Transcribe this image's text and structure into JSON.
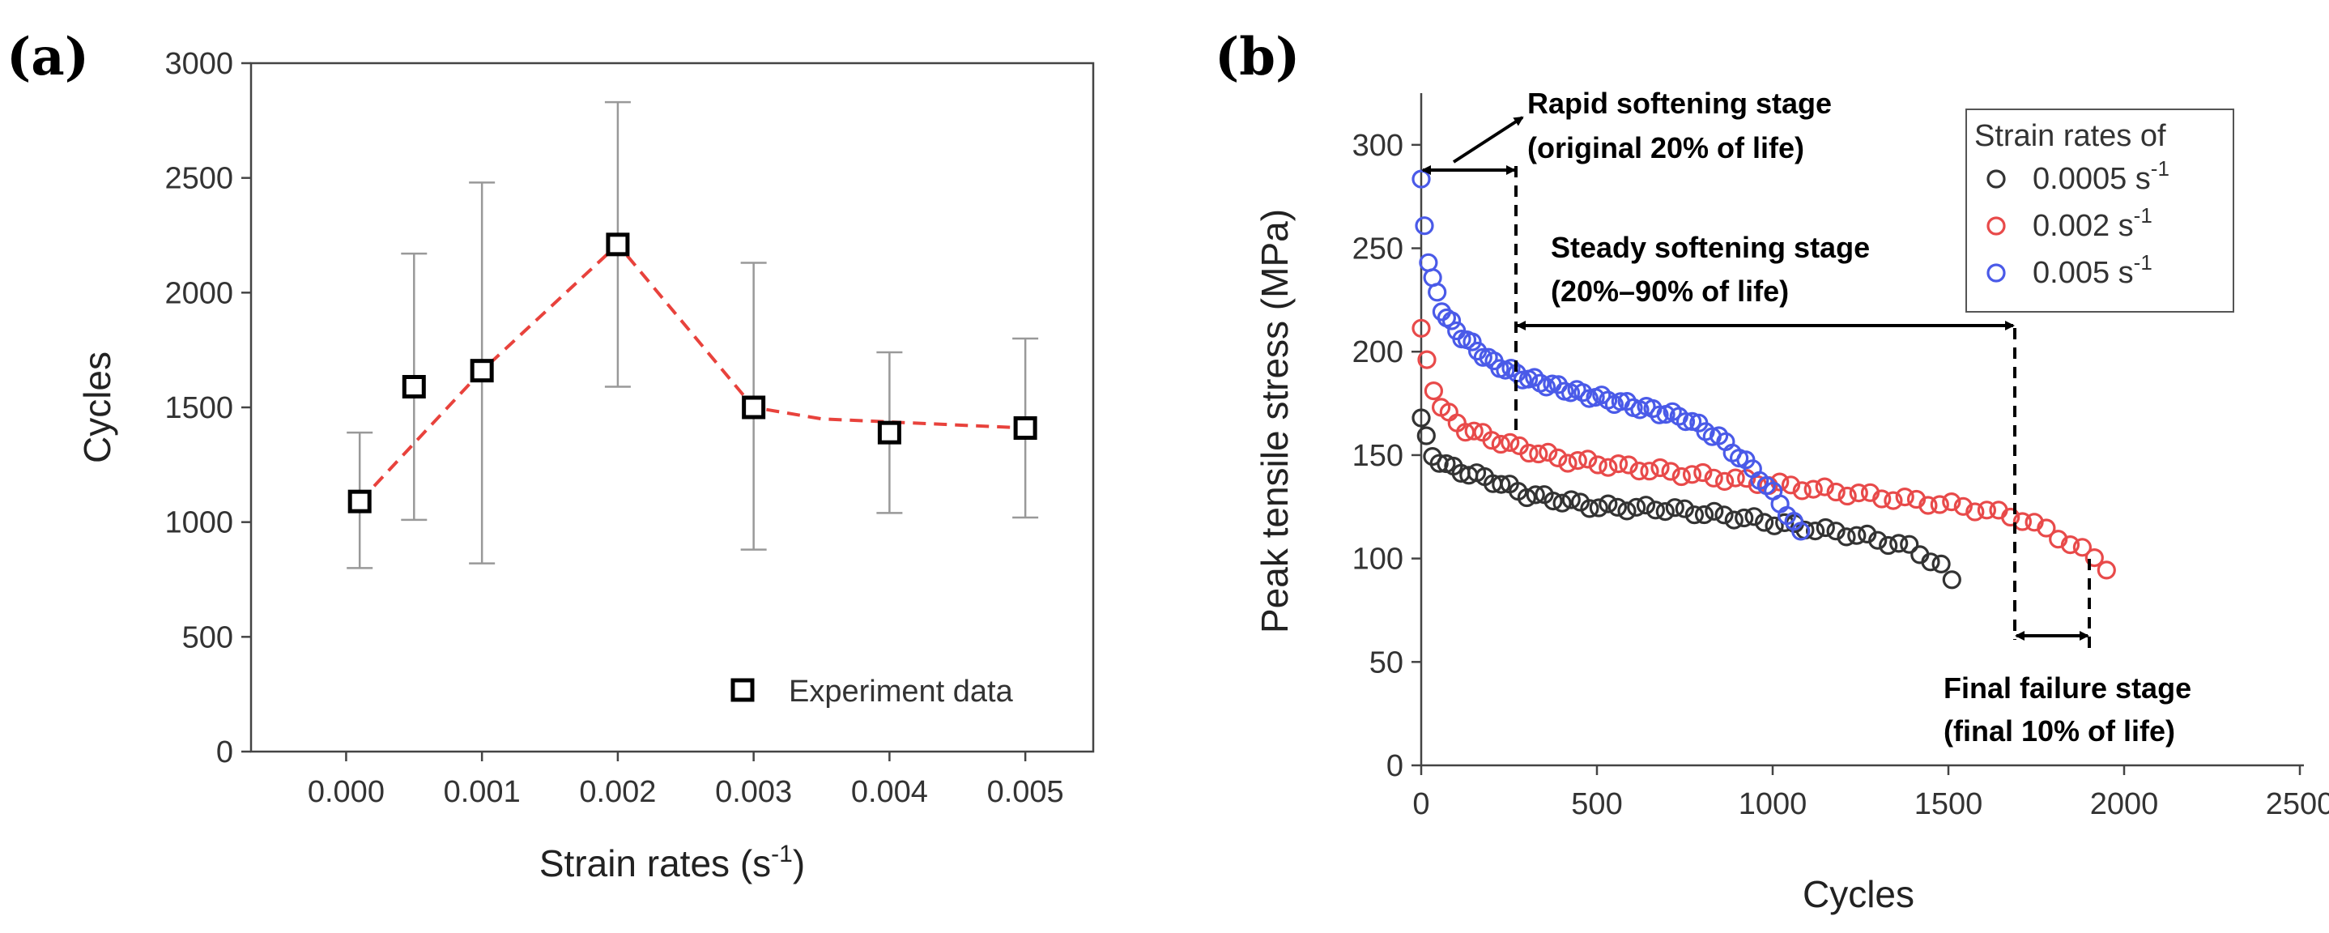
{
  "chart_data": [
    {
      "panel_label": "(a)",
      "type": "scatter",
      "xlabel": "Strain rates (s",
      "xlabel_sup": "-1",
      "xlabel_tail": ")",
      "ylabel": "Cycles",
      "xlim": [
        -0.0007,
        0.0055
      ],
      "ylim": [
        0,
        3000
      ],
      "xticks": [
        0.0,
        0.001,
        0.002,
        0.003,
        0.004,
        0.005
      ],
      "xtick_labels": [
        "0.000",
        "0.001",
        "0.002",
        "0.003",
        "0.004",
        "0.005"
      ],
      "yticks": [
        0,
        500,
        1000,
        1500,
        2000,
        2500,
        3000
      ],
      "ytick_labels": [
        "0",
        "500",
        "1000",
        "1500",
        "2000",
        "2500",
        "3000"
      ],
      "series": [
        {
          "name": "Experiment data",
          "x": [
            0.0001,
            0.0005,
            0.001,
            0.002,
            0.003,
            0.004,
            0.005
          ],
          "y": [
            1090,
            1590,
            1660,
            2210,
            1500,
            1390,
            1410
          ],
          "err_low": [
            800,
            1010,
            820,
            1590,
            880,
            1040,
            1020
          ],
          "err_high": [
            1390,
            2170,
            2480,
            2830,
            2130,
            1740,
            1800
          ]
        }
      ],
      "trend_line": {
        "x": [
          0.0001,
          0.001,
          0.002,
          0.003,
          0.0035,
          0.005
        ],
        "y": [
          1090,
          1660,
          2210,
          1500,
          1450,
          1410
        ],
        "color": "#e8423c"
      },
      "legend": {
        "position": "bottom-right",
        "label": "Experiment data"
      }
    },
    {
      "panel_label": "(b)",
      "type": "scatter",
      "xlabel": "Cycles",
      "ylabel": "Peak tensile stress (MPa)",
      "xlim": [
        0,
        2500
      ],
      "ylim": [
        0,
        325
      ],
      "xticks": [
        0,
        500,
        1000,
        1500,
        2000,
        2500
      ],
      "xtick_labels": [
        "0",
        "500",
        "1000",
        "1500",
        "2000",
        "2500"
      ],
      "yticks": [
        0,
        50,
        100,
        150,
        200,
        250,
        300
      ],
      "ytick_labels": [
        "0",
        "50",
        "100",
        "150",
        "200",
        "250",
        "300"
      ],
      "series": [
        {
          "name": "0.0005 s",
          "sup": "-1",
          "color": "#333333",
          "curve": [
            [
              0,
              168
            ],
            [
              10,
              160
            ],
            [
              30,
              150
            ],
            [
              80,
              144
            ],
            [
              200,
              138
            ],
            [
              300,
              131
            ],
            [
              500,
              125
            ],
            [
              700,
              124
            ],
            [
              900,
              120
            ],
            [
              1050,
              116
            ],
            [
              1250,
              111
            ],
            [
              1400,
              105
            ],
            [
              1480,
              96
            ],
            [
              1510,
              89
            ]
          ],
          "points": 58
        },
        {
          "name": "0.002 s",
          "sup": "-1",
          "color": "#e84a4a",
          "curve": [
            [
              0,
              210
            ],
            [
              10,
              200
            ],
            [
              30,
              185
            ],
            [
              60,
              172
            ],
            [
              120,
              163
            ],
            [
              250,
              155
            ],
            [
              400,
              148
            ],
            [
              600,
              144
            ],
            [
              800,
              140
            ],
            [
              1000,
              136
            ],
            [
              1200,
              132
            ],
            [
              1400,
              128
            ],
            [
              1550,
              125
            ],
            [
              1700,
              120
            ],
            [
              1800,
              112
            ],
            [
              1900,
              102
            ],
            [
              1950,
              96
            ]
          ],
          "points": 66
        },
        {
          "name": "0.005 s",
          "sup": "-1",
          "color": "#4a5ae8",
          "curve": [
            [
              0,
              282
            ],
            [
              15,
              249
            ],
            [
              30,
              236
            ],
            [
              60,
              220
            ],
            [
              100,
              210
            ],
            [
              200,
              195
            ],
            [
              300,
              187
            ],
            [
              450,
              180
            ],
            [
              600,
              174
            ],
            [
              750,
              168
            ],
            [
              850,
              158
            ],
            [
              950,
              142
            ],
            [
              1030,
              125
            ],
            [
              1080,
              112
            ]
          ],
          "points": 64
        }
      ],
      "legend": {
        "position": "top-right",
        "title": "Strain rates of"
      },
      "annotations": {
        "rapid_line1": "Rapid softening stage",
        "rapid_line2": "(original 20% of life)",
        "steady_line1": "Steady softening stage",
        "steady_line2": "(20%–90%  of life)",
        "final_line1": "Final failure stage",
        "final_line2": "(final 10% of life)"
      }
    }
  ]
}
